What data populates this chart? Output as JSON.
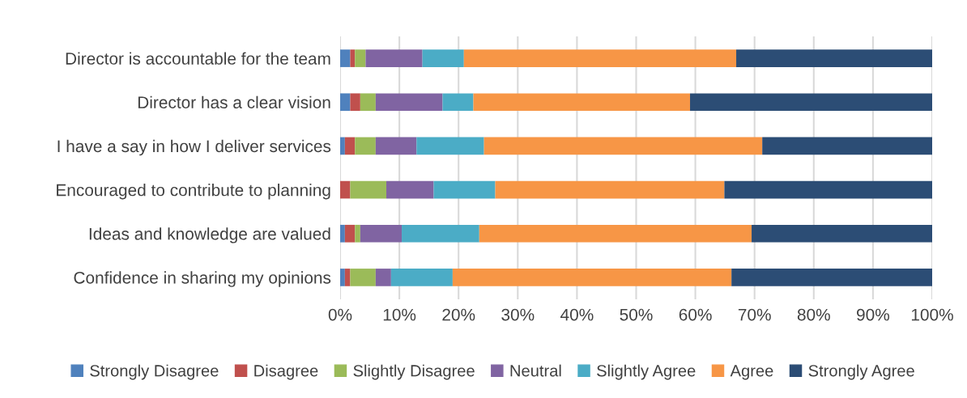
{
  "chart_data": {
    "type": "bar",
    "orientation": "horizontal",
    "stacked": true,
    "categories": [
      "Director is accountable for the team",
      "Director has a clear vision",
      "I have a say in how I deliver services",
      "Encouraged to contribute to planning",
      "Ideas and knowledge are valued",
      "Confidence in sharing my opinions"
    ],
    "series": [
      {
        "name": "Strongly Disagree",
        "color": "#4f81bd",
        "values": [
          1.7,
          1.7,
          0.8,
          0,
          0.8,
          0.8
        ]
      },
      {
        "name": "Disagree",
        "color": "#c0504d",
        "values": [
          0.8,
          1.7,
          1.7,
          1.7,
          1.7,
          0.9
        ]
      },
      {
        "name": "Slightly Disagree",
        "color": "#9bbb59",
        "values": [
          1.8,
          2.6,
          3.5,
          6.1,
          0.9,
          4.3
        ]
      },
      {
        "name": "Neutral",
        "color": "#8064a2",
        "values": [
          9.6,
          11.3,
          6.9,
          8.0,
          7.0,
          2.6
        ]
      },
      {
        "name": "Slightly Agree",
        "color": "#4bacc6",
        "values": [
          7.0,
          5.2,
          11.4,
          10.4,
          13.1,
          10.4
        ]
      },
      {
        "name": "Agree",
        "color": "#f79646",
        "values": [
          46.0,
          36.6,
          47.0,
          38.7,
          46.0,
          47.1
        ]
      },
      {
        "name": "Strongly Agree",
        "color": "#2c4d75",
        "values": [
          33.1,
          40.9,
          28.7,
          35.1,
          30.5,
          33.9
        ]
      }
    ],
    "xlim": [
      0,
      100
    ],
    "xticks": [
      {
        "value": 0,
        "label": "0%"
      },
      {
        "value": 10,
        "label": "10%"
      },
      {
        "value": 20,
        "label": "20%"
      },
      {
        "value": 30,
        "label": "30%"
      },
      {
        "value": 40,
        "label": "40%"
      },
      {
        "value": 50,
        "label": "50%"
      },
      {
        "value": 60,
        "label": "60%"
      },
      {
        "value": 70,
        "label": "70%"
      },
      {
        "value": 80,
        "label": "80%"
      },
      {
        "value": 90,
        "label": "90%"
      },
      {
        "value": 100,
        "label": "100%"
      }
    ],
    "grid": "x",
    "legend": "bottom"
  }
}
